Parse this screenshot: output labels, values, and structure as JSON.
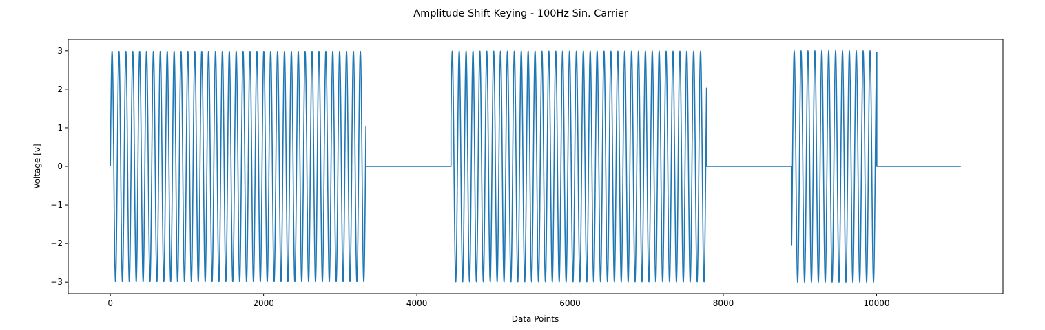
{
  "chart_data": {
    "type": "line",
    "title": "Amplitude Shift Keying - 100Hz Sin. Carrier",
    "xlabel": "Data Points",
    "ylabel": "Voltage [v]",
    "xlim": [
      -550,
      11650
    ],
    "ylim": [
      -3.3,
      3.3
    ],
    "x_ticks": [
      0,
      2000,
      4000,
      6000,
      8000,
      10000
    ],
    "x_tick_labels": [
      "0",
      "2000",
      "4000",
      "6000",
      "8000",
      "10000"
    ],
    "y_ticks": [
      -3,
      -2,
      -1,
      0,
      1,
      2,
      3
    ],
    "y_tick_labels": [
      "−3",
      "−2",
      "−1",
      "0",
      "1",
      "2",
      "3"
    ],
    "grid": false,
    "series": [
      {
        "color": "#1f77b4",
        "amplitude": 3,
        "carrier_period_points": 90,
        "x_end": 11100,
        "segments": [
          {
            "start": 0,
            "end": 3335,
            "amplitude": 3,
            "start_value": 0
          },
          {
            "start": 3335,
            "end": 4446,
            "amplitude": 0,
            "start_value": 0
          },
          {
            "start": 4446,
            "end": 7781,
            "amplitude": 3,
            "start_value": 1.15
          },
          {
            "start": 7781,
            "end": 8892,
            "amplitude": 0,
            "start_value": 0
          },
          {
            "start": 8892,
            "end": 10003,
            "amplitude": 3,
            "start_value": -2.05
          },
          {
            "start": 10003,
            "end": 11100,
            "amplitude": 0,
            "start_value": 0
          }
        ]
      }
    ]
  }
}
